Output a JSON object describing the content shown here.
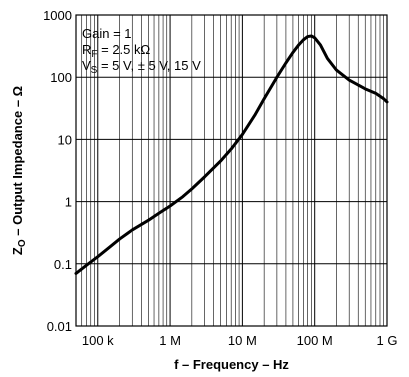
{
  "chart_data": {
    "type": "line",
    "title": "",
    "xlabel": "f – Frequency – Hz",
    "ylabel": "Z",
    "ylabel_sub": "O",
    "ylabel_rest": " – Output Impedance – Ω",
    "x_scale": "log",
    "y_scale": "log",
    "xlim": [
      50000,
      1000000000
    ],
    "ylim": [
      0.01,
      1000
    ],
    "grid": true,
    "x_ticks": [
      {
        "value": 100000,
        "label": "100 k"
      },
      {
        "value": 1000000,
        "label": "1 M"
      },
      {
        "value": 10000000,
        "label": "10 M"
      },
      {
        "value": 100000000,
        "label": "100 M"
      },
      {
        "value": 1000000000,
        "label": "1 G"
      }
    ],
    "y_ticks": [
      {
        "value": 0.01,
        "label": "0.01"
      },
      {
        "value": 0.1,
        "label": "0.1"
      },
      {
        "value": 1,
        "label": "1"
      },
      {
        "value": 10,
        "label": "10"
      },
      {
        "value": 100,
        "label": "100"
      },
      {
        "value": 1000,
        "label": "1000"
      }
    ],
    "annotations": {
      "gain": "Gain = 1",
      "rf_main": "R",
      "rf_sub": "F",
      "rf_rest": " = 2.5 kΩ",
      "vs_main": "V",
      "vs_sub": "S",
      "vs_rest": " = 5 V, ± 5 V, 15 V"
    },
    "series": [
      {
        "x": [
          50000,
          70000,
          100000,
          150000,
          200000,
          300000,
          500000,
          700000,
          1000000,
          1500000,
          2000000,
          3000000,
          5000000,
          7000000,
          10000000,
          15000000,
          20000000,
          30000000,
          40000000,
          50000000,
          60000000,
          70000000,
          80000000,
          90000000,
          100000000,
          120000000,
          150000000,
          200000000,
          300000000,
          500000000,
          700000000,
          900000000,
          1000000000
        ],
        "y": [
          0.07,
          0.095,
          0.13,
          0.19,
          0.25,
          0.35,
          0.5,
          0.65,
          0.85,
          1.2,
          1.6,
          2.5,
          4.5,
          7,
          12,
          25,
          45,
          100,
          170,
          250,
          330,
          400,
          450,
          460,
          430,
          330,
          200,
          130,
          90,
          65,
          55,
          45,
          40
        ]
      }
    ]
  }
}
